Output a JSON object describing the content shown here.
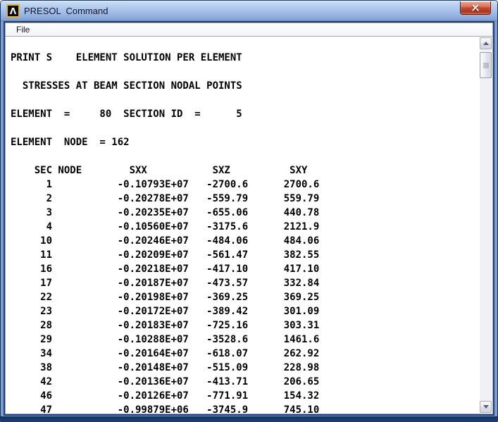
{
  "window": {
    "title": "PRESOL  Command",
    "icon": {
      "name": "ansys-logo",
      "glyph": "Λ"
    }
  },
  "menu": {
    "items": [
      {
        "label": "File"
      }
    ]
  },
  "output": {
    "print_line": "PRINT S    ELEMENT SOLUTION PER ELEMENT",
    "subtitle": "STRESSES AT BEAM SECTION NODAL POINTS",
    "element": "80",
    "section_id": "5",
    "element_node": "162",
    "table": {
      "headers": [
        "SEC NODE",
        "SXX",
        "SXZ",
        "SXY"
      ],
      "rows": [
        [
          "1",
          "-0.10793E+07",
          "-2700.6",
          "2700.6"
        ],
        [
          "2",
          "-0.20278E+07",
          "-559.79",
          "559.79"
        ],
        [
          "3",
          "-0.20235E+07",
          "-655.06",
          "440.78"
        ],
        [
          "4",
          "-0.10560E+07",
          "-3175.6",
          "2121.9"
        ],
        [
          "10",
          "-0.20246E+07",
          "-484.06",
          "484.06"
        ],
        [
          "11",
          "-0.20209E+07",
          "-561.47",
          "382.55"
        ],
        [
          "16",
          "-0.20218E+07",
          "-417.10",
          "417.10"
        ],
        [
          "17",
          "-0.20187E+07",
          "-473.57",
          "332.84"
        ],
        [
          "22",
          "-0.20198E+07",
          "-369.25",
          "369.25"
        ],
        [
          "23",
          "-0.20172E+07",
          "-389.42",
          "301.09"
        ],
        [
          "28",
          "-0.20183E+07",
          "-725.16",
          "303.31"
        ],
        [
          "29",
          "-0.10288E+07",
          "-3528.6",
          "1461.6"
        ],
        [
          "34",
          "-0.20164E+07",
          "-618.07",
          "262.92"
        ],
        [
          "38",
          "-0.20148E+07",
          "-515.09",
          "228.98"
        ],
        [
          "42",
          "-0.20136E+07",
          "-413.71",
          "206.65"
        ],
        [
          "46",
          "-0.20126E+07",
          "-771.91",
          "154.32"
        ],
        [
          "47",
          "-0.99879E+06",
          "-3745.9",
          "745.10"
        ]
      ]
    }
  },
  "colors": {
    "titlebar_blue": "#9db9e4",
    "frame_blue": "#7e9ccd",
    "frame_navy": "#16345f",
    "close_red": "#c44a31",
    "client_bg": "#ffffff",
    "text": "#000000"
  }
}
